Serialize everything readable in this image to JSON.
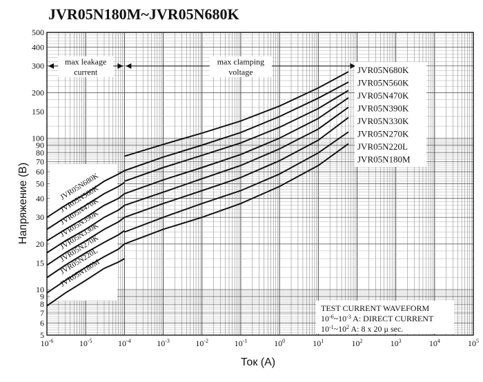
{
  "chart_data": {
    "type": "line",
    "title": "JVR05N180M~JVR05N680K",
    "xlabel": "Ток (A)",
    "ylabel": "Напряжение (В)",
    "xscale": "log",
    "yscale": "log",
    "xlim": [
      1e-06,
      100000
    ],
    "ylim": [
      5,
      500
    ],
    "x_tick_labels": [
      {
        "value": 1e-06,
        "base": "10",
        "exp": "-6"
      },
      {
        "value": 1e-05,
        "base": "10",
        "exp": "-5"
      },
      {
        "value": 0.0001,
        "base": "10",
        "exp": "-4"
      },
      {
        "value": 0.001,
        "base": "10",
        "exp": "-3"
      },
      {
        "value": 0.01,
        "base": "10",
        "exp": "-2"
      },
      {
        "value": 0.1,
        "base": "10",
        "exp": "-1"
      },
      {
        "value": 1,
        "base": "10",
        "exp": "0"
      },
      {
        "value": 10,
        "base": "10",
        "exp": "1"
      },
      {
        "value": 100,
        "base": "10",
        "exp": "2"
      },
      {
        "value": 1000,
        "base": "10",
        "exp": "3"
      },
      {
        "value": 10000,
        "base": "10",
        "exp": "4"
      },
      {
        "value": 100000,
        "base": "10",
        "exp": "5"
      }
    ],
    "y_ticks": [
      5,
      6,
      7,
      8,
      9,
      10,
      15,
      20,
      30,
      40,
      50,
      60,
      70,
      80,
      90,
      100,
      150,
      200,
      300,
      400,
      500
    ],
    "grid": true,
    "regions": [
      {
        "label_line1": "max leakage",
        "label_line2": "current",
        "x_from": 1e-06,
        "x_to": 0.0001
      },
      {
        "label_line1": "max clamping",
        "label_line2": "voltage",
        "x_from": 0.0001,
        "x_to": 100
      }
    ],
    "series": [
      {
        "name": "JVR05N680K",
        "curve_label": "JVR05N680K",
        "leakage": [
          [
            1e-06,
            30
          ],
          [
            3e-06,
            36
          ],
          [
            1e-05,
            43
          ],
          [
            3e-05,
            52
          ],
          [
            7e-05,
            58
          ],
          [
            0.0001,
            61
          ]
        ],
        "clamping": [
          [
            0.0001,
            76
          ],
          [
            0.001,
            91
          ],
          [
            0.01,
            108
          ],
          [
            0.1,
            130
          ],
          [
            1,
            163
          ],
          [
            10,
            215
          ],
          [
            60,
            275
          ]
        ]
      },
      {
        "name": "JVR05N560K",
        "curve_label": "JVR05N560K",
        "leakage": [
          [
            1e-06,
            25
          ],
          [
            3e-06,
            30
          ],
          [
            1e-05,
            36
          ],
          [
            3e-05,
            43
          ],
          [
            7e-05,
            48
          ],
          [
            0.0001,
            51
          ]
        ],
        "clamping": [
          [
            0.0001,
            61
          ],
          [
            0.001,
            75
          ],
          [
            0.01,
            90
          ],
          [
            0.1,
            109
          ],
          [
            1,
            139
          ],
          [
            10,
            184
          ],
          [
            60,
            235
          ]
        ]
      },
      {
        "name": "JVR05N470K",
        "curve_label": "JVR05N470K",
        "leakage": [
          [
            1e-06,
            21
          ],
          [
            3e-06,
            25
          ],
          [
            1e-05,
            30
          ],
          [
            3e-05,
            36
          ],
          [
            7e-05,
            40
          ],
          [
            0.0001,
            43
          ]
        ],
        "clamping": [
          [
            0.0001,
            52
          ],
          [
            0.001,
            64
          ],
          [
            0.01,
            77
          ],
          [
            0.1,
            93
          ],
          [
            1,
            118
          ],
          [
            10,
            157
          ],
          [
            60,
            207
          ]
        ]
      },
      {
        "name": "JVR05N390K",
        "curve_label": "JVR05N390K",
        "leakage": [
          [
            1e-06,
            17.5
          ],
          [
            3e-06,
            21
          ],
          [
            1e-05,
            25
          ],
          [
            3e-05,
            30
          ],
          [
            7e-05,
            33.5
          ],
          [
            0.0001,
            36
          ]
        ],
        "clamping": [
          [
            0.0001,
            43
          ],
          [
            0.001,
            53
          ],
          [
            0.01,
            64
          ],
          [
            0.1,
            78
          ],
          [
            1,
            100
          ],
          [
            10,
            135
          ],
          [
            60,
            185
          ]
        ]
      },
      {
        "name": "JVR05N330K",
        "curve_label": "JVR05N330K",
        "leakage": [
          [
            1e-06,
            14.5
          ],
          [
            3e-06,
            17.5
          ],
          [
            1e-05,
            21
          ],
          [
            3e-05,
            25
          ],
          [
            7e-05,
            28
          ],
          [
            0.0001,
            30
          ]
        ],
        "clamping": [
          [
            0.0001,
            36
          ],
          [
            0.001,
            44
          ],
          [
            0.01,
            54
          ],
          [
            0.1,
            66
          ],
          [
            1,
            85
          ],
          [
            10,
            115
          ],
          [
            60,
            160
          ]
        ]
      },
      {
        "name": "JVR05N270K",
        "curve_label": "JVR05N270K",
        "leakage": [
          [
            1e-06,
            12
          ],
          [
            3e-06,
            14.5
          ],
          [
            1e-05,
            17.5
          ],
          [
            3e-05,
            20.5
          ],
          [
            7e-05,
            23
          ],
          [
            0.0001,
            24.5
          ]
        ],
        "clamping": [
          [
            0.0001,
            30
          ],
          [
            0.001,
            37
          ],
          [
            0.01,
            45
          ],
          [
            0.1,
            55
          ],
          [
            1,
            71
          ],
          [
            10,
            97
          ],
          [
            60,
            137
          ]
        ]
      },
      {
        "name": "JVR05N220L",
        "curve_label": "JVR05N220L",
        "leakage": [
          [
            1e-06,
            9.5
          ],
          [
            3e-06,
            11.5
          ],
          [
            1e-05,
            14
          ],
          [
            3e-05,
            16.5
          ],
          [
            7e-05,
            18.5
          ],
          [
            0.0001,
            20
          ]
        ],
        "clamping": [
          [
            0.0001,
            24
          ],
          [
            0.001,
            30
          ],
          [
            0.01,
            37
          ],
          [
            0.1,
            45
          ],
          [
            1,
            58
          ],
          [
            10,
            80
          ],
          [
            60,
            110
          ]
        ]
      },
      {
        "name": "JVR05N180M",
        "curve_label": "JVR05N180M",
        "leakage": [
          [
            1e-06,
            7.8
          ],
          [
            3e-06,
            9.5
          ],
          [
            1e-05,
            11.5
          ],
          [
            3e-05,
            13.8
          ],
          [
            7e-05,
            15.2
          ],
          [
            0.0001,
            16
          ]
        ],
        "clamping": [
          [
            0.0001,
            20
          ],
          [
            0.001,
            25
          ],
          [
            0.01,
            30
          ],
          [
            0.1,
            37
          ],
          [
            1,
            48
          ],
          [
            10,
            66
          ],
          [
            60,
            92
          ]
        ]
      }
    ],
    "legend": [
      "JVR05N680K",
      "JVR05N560K",
      "JVR05N470K",
      "JVR05N390K",
      "JVR05N330K",
      "JVR05N270K",
      "JVR05N220L",
      "JVR05N180M"
    ],
    "legend_placement": "right",
    "waveform_note": {
      "line1": "TEST CURRENT WAVEFORM",
      "line2_base": "10",
      "line2_exp1": "-6",
      "line2_mid": "~10",
      "line2_exp2": "-3",
      "line2_rest": " A: DIRECT CURRENT",
      "line3_base": "10",
      "line3_exp1": "-1",
      "line3_mid": "~10",
      "line3_exp2": "2",
      "line3_rest": " A: 8 x 20 μ sec."
    }
  }
}
